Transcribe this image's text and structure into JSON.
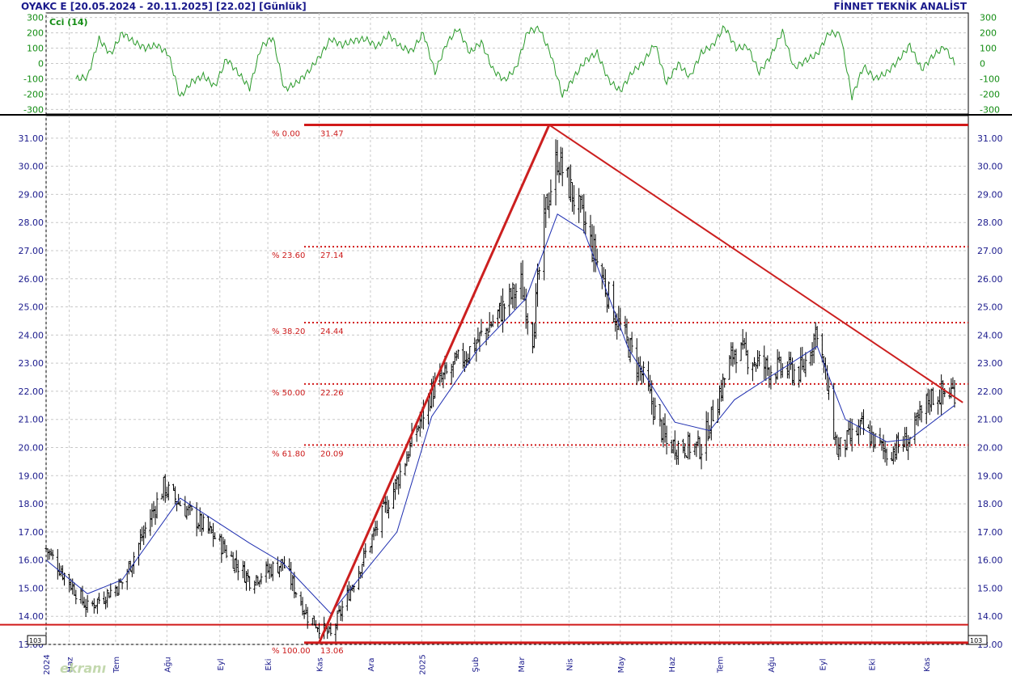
{
  "header": {
    "left": "OYAKC E  [20.05.2024 - 20.11.2025]  [22.02]  [Günlük]",
    "right": "FİNNET TEKNİK ANALİST"
  },
  "watermark": "ekranı",
  "colors": {
    "price_bars": "#000000",
    "moving_average": "#1f2fb0",
    "cci_line": "#2a9a2a",
    "fib_lines": "#d11a1a",
    "trend_lines": "#cc1f1f",
    "axis_text": "#1a1a8c",
    "fib_text": "#cc1a1a"
  },
  "chart_data": [
    {
      "type": "line",
      "title": "Cci (14)",
      "ylim": [
        -330,
        330
      ],
      "yticks": [
        300,
        200,
        100,
        0,
        -100,
        -200,
        -300
      ],
      "grid": true,
      "series": [
        {
          "name": "Cci (14)",
          "x_start": "2024-06-07",
          "step_days": 7,
          "values": [
            -100,
            -90,
            160,
            60,
            200,
            140,
            100,
            120,
            60,
            -220,
            -120,
            -80,
            -150,
            30,
            -60,
            -160,
            110,
            170,
            -170,
            -130,
            -60,
            40,
            160,
            120,
            150,
            160,
            110,
            190,
            110,
            80,
            200,
            -60,
            130,
            230,
            70,
            140,
            -40,
            -110,
            -30,
            210,
            230,
            60,
            -210,
            -90,
            20,
            70,
            -110,
            -180,
            -60,
            10,
            130,
            -130,
            0,
            -90,
            70,
            120,
            240,
            100,
            110,
            -60,
            50,
            210,
            -30,
            20,
            60,
            200,
            190,
            -220,
            -20,
            -100,
            -60,
            20,
            120,
            -40,
            50,
            110,
            -20,
            -140,
            140,
            80,
            -60,
            120,
            60
          ]
        }
      ]
    },
    {
      "type": "candlestick",
      "title": "",
      "xlabel": "",
      "ylabel": "",
      "ylim": [
        13.0,
        31.8
      ],
      "yticks": [
        13.0,
        14.0,
        15.0,
        16.0,
        17.0,
        18.0,
        19.0,
        20.0,
        21.0,
        22.0,
        23.0,
        24.0,
        25.0,
        26.0,
        27.0,
        28.0,
        29.0,
        30.0,
        31.0
      ],
      "y_multiplier_label": "10^3",
      "last_value": 22.02,
      "x_tick_labels": [
        "2024",
        "Haz",
        "Tem",
        "Ağu",
        "Eyl",
        "Eki",
        "Kas",
        "Ara",
        "2025",
        "Şub",
        "Mar",
        "Nis",
        "May",
        "Haz",
        "Tem",
        "Ağu",
        "Eyl",
        "Eki",
        "Kas"
      ],
      "x_tick_dates": [
        "2024-05-20",
        "2024-06-03",
        "2024-07-01",
        "2024-08-01",
        "2024-09-02",
        "2024-10-01",
        "2024-11-01",
        "2024-12-02",
        "2025-01-02",
        "2025-02-03",
        "2025-03-03",
        "2025-04-01",
        "2025-05-02",
        "2025-06-02",
        "2025-07-01",
        "2025-08-01",
        "2025-09-01",
        "2025-10-01",
        "2025-11-03"
      ],
      "price_anchors": {
        "dates": [
          "2024-05-20",
          "2024-06-14",
          "2024-07-05",
          "2024-07-30",
          "2024-08-09",
          "2024-08-30",
          "2024-09-20",
          "2024-10-10",
          "2024-10-25",
          "2024-11-08",
          "2024-11-20",
          "2024-12-18",
          "2025-01-08",
          "2025-02-05",
          "2025-03-03",
          "2025-03-10",
          "2025-03-18",
          "2025-03-25",
          "2025-04-10",
          "2025-04-30",
          "2025-05-15",
          "2025-05-30",
          "2025-06-20",
          "2025-07-10",
          "2025-07-31",
          "2025-08-20",
          "2025-08-29",
          "2025-09-10",
          "2025-09-25",
          "2025-10-10",
          "2025-10-24",
          "2025-11-05",
          "2025-11-20"
        ],
        "closes": [
          16.4,
          14.3,
          15.2,
          18.6,
          18.0,
          16.8,
          15.3,
          15.9,
          14.0,
          13.3,
          15.0,
          18.8,
          22.0,
          23.8,
          25.8,
          24.0,
          28.5,
          30.3,
          28.0,
          24.5,
          22.6,
          20.1,
          20.0,
          23.5,
          22.8,
          22.7,
          24.3,
          19.9,
          20.7,
          19.8,
          20.3,
          21.8,
          22.02
        ]
      },
      "moving_average": {
        "dates": [
          "2024-05-20",
          "2024-06-14",
          "2024-07-05",
          "2024-08-09",
          "2024-09-20",
          "2024-10-10",
          "2024-11-08",
          "2024-12-18",
          "2025-01-08",
          "2025-02-05",
          "2025-03-06",
          "2025-03-25",
          "2025-04-10",
          "2025-05-07",
          "2025-06-04",
          "2025-06-25",
          "2025-07-10",
          "2025-07-31",
          "2025-08-29",
          "2025-09-15",
          "2025-10-10",
          "2025-10-24",
          "2025-11-20"
        ],
        "values": [
          16.0,
          14.8,
          15.3,
          18.2,
          16.6,
          15.9,
          14.1,
          17.0,
          21.1,
          23.5,
          25.3,
          28.3,
          27.7,
          23.5,
          20.9,
          20.6,
          21.7,
          22.5,
          23.6,
          21.0,
          20.2,
          20.3,
          21.5
        ]
      },
      "fibonacci": {
        "high": 31.47,
        "low": 13.06,
        "levels": [
          {
            "pct": "% 0.00",
            "value": "31.47",
            "price": 31.47
          },
          {
            "pct": "% 23.60",
            "value": "27.14",
            "price": 27.14
          },
          {
            "pct": "% 38.20",
            "value": "24.44",
            "price": 24.44
          },
          {
            "pct": "% 50.00",
            "value": "22.26",
            "price": 22.26
          },
          {
            "pct": "% 61.80",
            "value": "20.09",
            "price": 20.09
          },
          {
            "pct": "% 100.00",
            "value": "13.06",
            "price": 13.06
          }
        ]
      },
      "support_line": 13.7,
      "trend_lines": [
        {
          "from_date": "2024-11-01",
          "from_price": 13.06,
          "to_date": "2025-03-20",
          "to_price": 31.47
        },
        {
          "from_date": "2025-03-20",
          "from_price": 31.47,
          "to_date": "2025-11-25",
          "to_price": 21.6
        }
      ]
    }
  ]
}
